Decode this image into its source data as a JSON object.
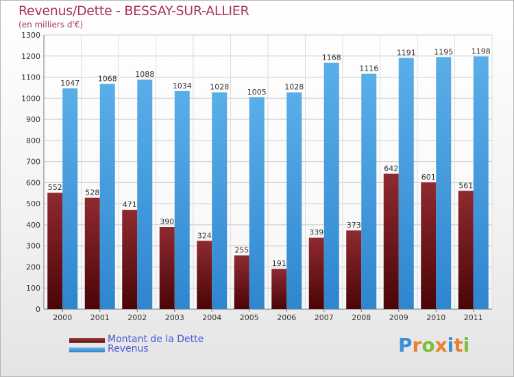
{
  "title": "Revenus/Dette - BESSAY-SUR-ALLIER",
  "subtitle": "(en milliers d'€)",
  "logo": "Proxiti",
  "colors": {
    "dette": "#7a1f24",
    "revenus": "#4a9fe0",
    "title": "#a8325e",
    "legend_text": "#4a57d8"
  },
  "legend": {
    "dette": "Montant de la Dette",
    "revenus": "Revenus"
  },
  "chart_data": {
    "type": "bar",
    "title": "Revenus/Dette - BESSAY-SUR-ALLIER",
    "subtitle": "(en milliers d'€)",
    "xlabel": "",
    "ylabel": "",
    "ylim": [
      0,
      1300
    ],
    "yticks": [
      0,
      100,
      200,
      300,
      400,
      500,
      600,
      700,
      800,
      900,
      1000,
      1100,
      1200,
      1300
    ],
    "grid": true,
    "legend_position": "bottom-left",
    "categories": [
      "2000",
      "2001",
      "2002",
      "2003",
      "2004",
      "2005",
      "2006",
      "2007",
      "2008",
      "2009",
      "2010",
      "2011"
    ],
    "series": [
      {
        "name": "Montant de la Dette",
        "values": [
          552,
          528,
          471,
          390,
          324,
          255,
          191,
          339,
          373,
          642,
          601,
          561
        ]
      },
      {
        "name": "Revenus",
        "values": [
          1047,
          1068,
          1088,
          1034,
          1028,
          1005,
          1028,
          1168,
          1116,
          1191,
          1195,
          1198
        ]
      }
    ]
  }
}
